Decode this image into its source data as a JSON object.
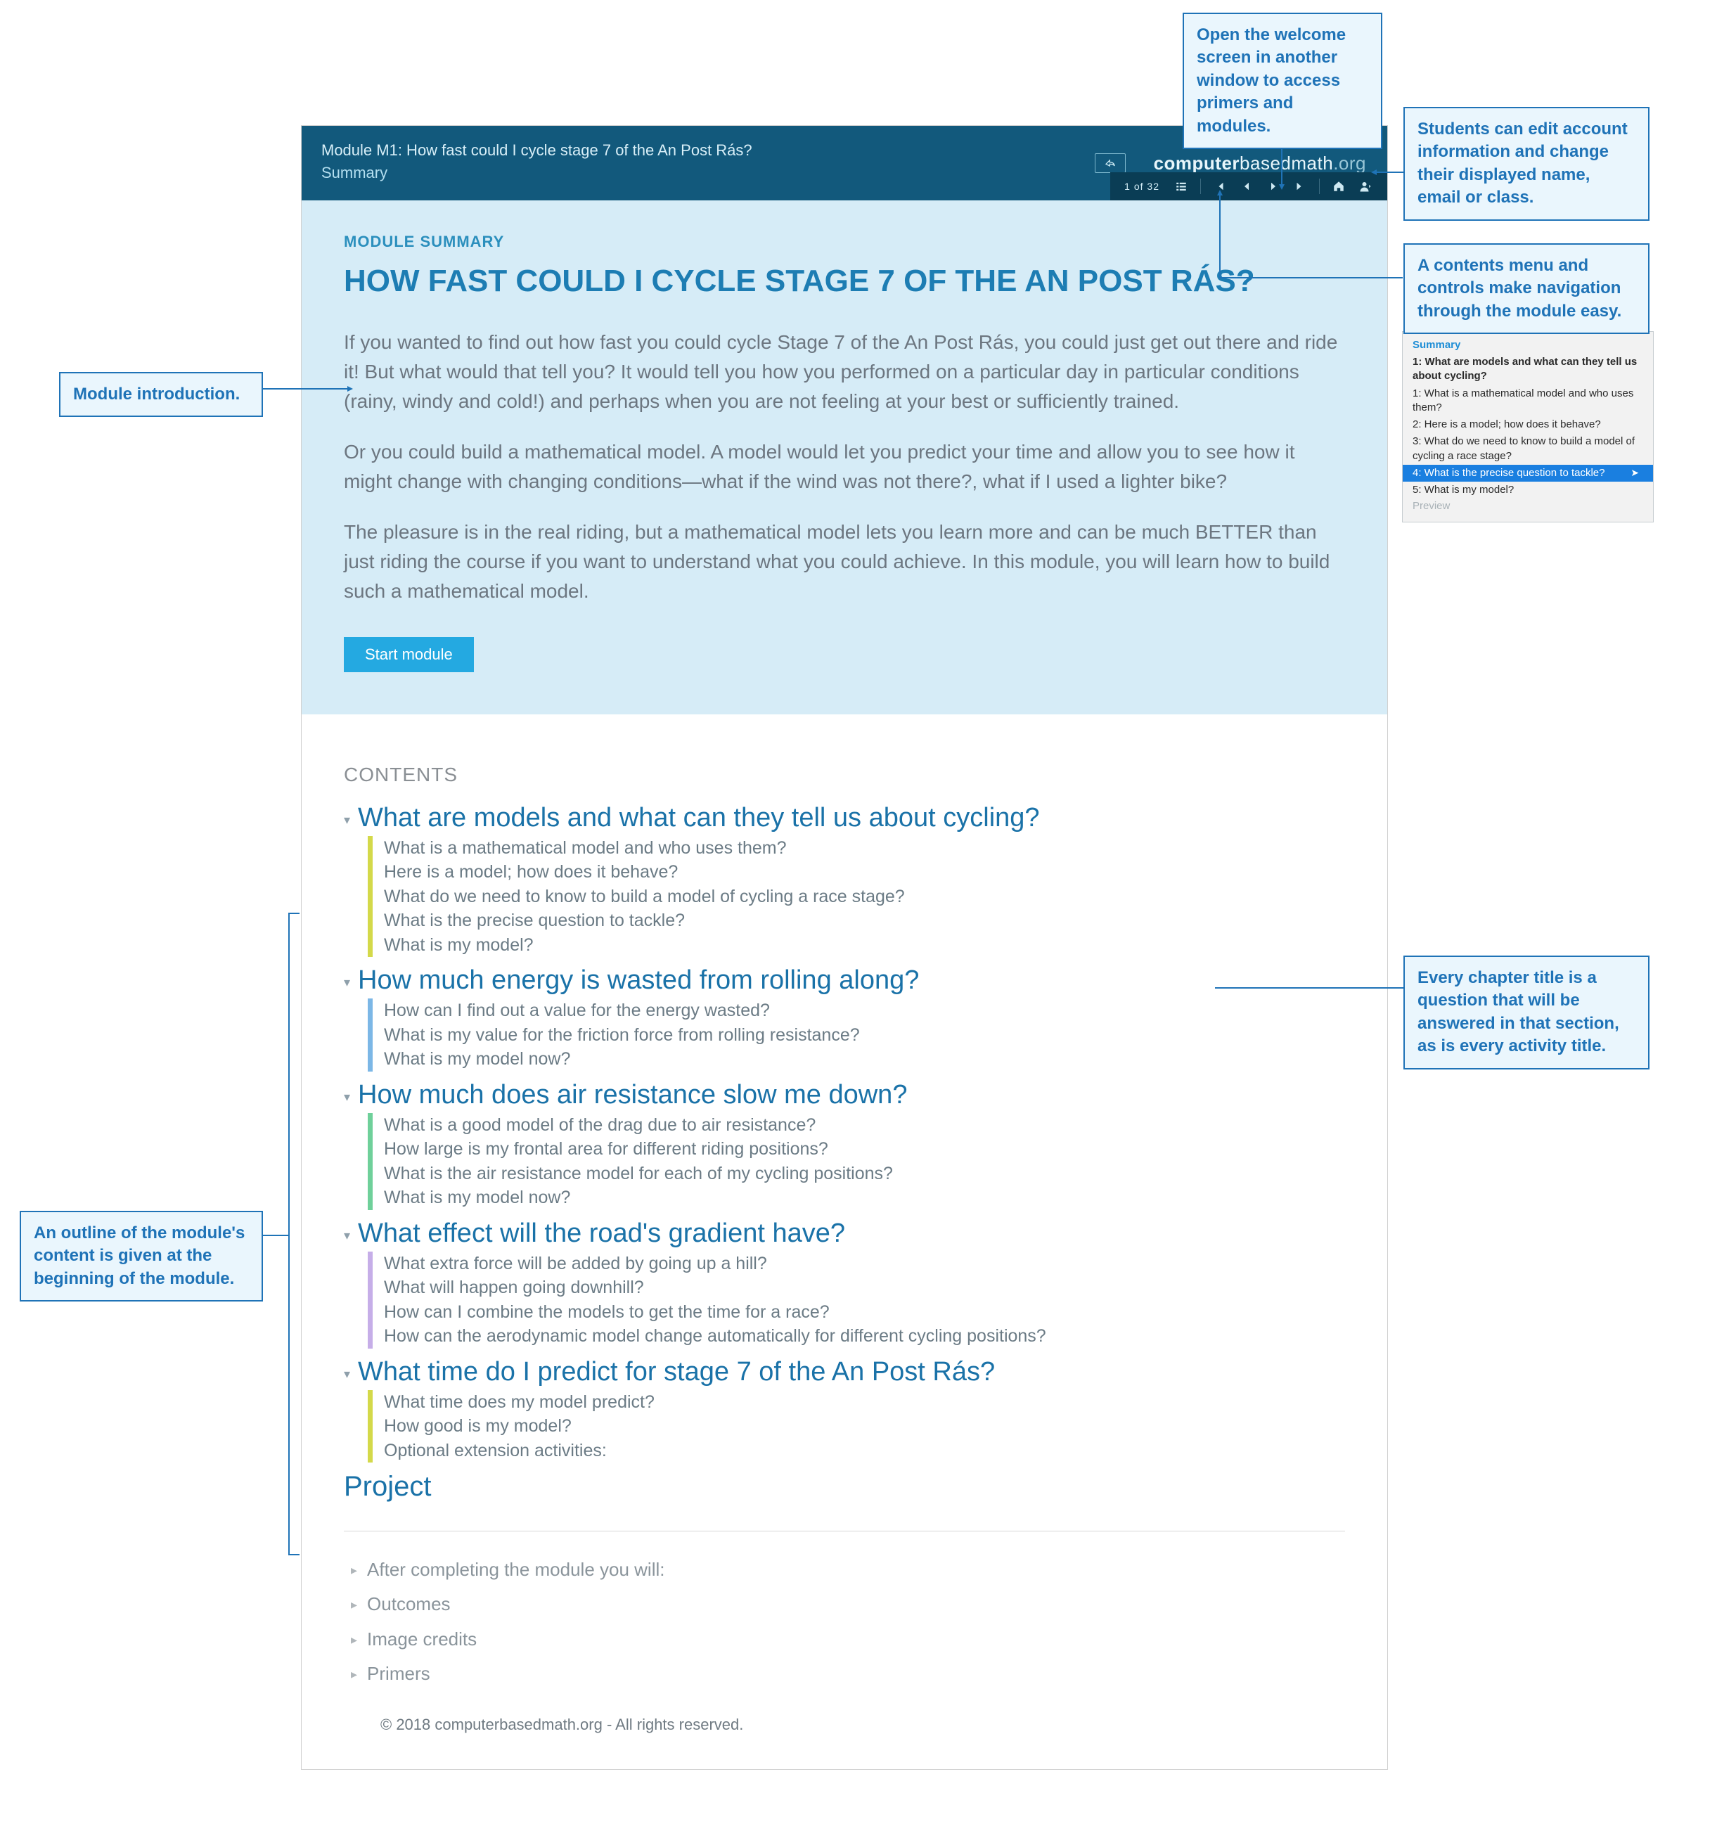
{
  "callouts": {
    "welcome": "Open the welcome screen in another window to access primers and modules.",
    "account": "Students can edit account information and change their displayed name, email or class.",
    "nav": "A contents menu and controls make navigation through the module easy.",
    "intro": "Module introduction.",
    "outline": "An outline of the module's content is given at the beginning of the module.",
    "chapter": "Every chapter title is a question that will be answered in that section, as is every activity title."
  },
  "header": {
    "title": "Module M1: How fast could I cycle stage 7 of the An Post Rás?",
    "subtitle": "Summary",
    "brand_bold": "computer",
    "brand_mid": "basedmath",
    "brand_light": ".org",
    "page_indicator": "1 of 32"
  },
  "summary": {
    "eyebrow": "MODULE SUMMARY",
    "title": "HOW FAST COULD I CYCLE STAGE 7 OF THE AN POST RÁS?",
    "p1": "If you wanted to find out how fast you could cycle Stage 7 of the An Post Rás, you could just get out there and ride it! But what would that tell you? It would tell you how you performed on a particular day in particular conditions (rainy, windy and cold!) and perhaps when you are not feeling at your best or sufficiently trained.",
    "p2": "Or you could build a mathematical model. A model would let you predict your time and allow you to see how it might change with changing conditions—what if the wind was not there?, what if I used a lighter bike?",
    "p3": "The pleasure is in the real riding, but a mathematical model lets you learn more and can be much BETTER than just riding the course if you want to understand what you could achieve. In this module, you will learn how to build such a mathematical model.",
    "start_label": "Start module"
  },
  "contents_heading": "CONTENTS",
  "chapters": [
    {
      "title": "What are models and what can they tell us about cycling?",
      "color": "#d4d94a",
      "items": [
        "What is a mathematical model and who uses them?",
        "Here is a model; how does it behave?",
        "What do we need to know to build a model of cycling a race stage?",
        "What is the precise question to tackle?",
        "What is my model?"
      ]
    },
    {
      "title": "How much energy is wasted from rolling along?",
      "color": "#7cb7e6",
      "items": [
        "How can I find out a value for the energy wasted?",
        "What is my value for the friction force from rolling resistance?",
        "What is my model now?"
      ]
    },
    {
      "title": "How much does air resistance slow me down?",
      "color": "#6fd09a",
      "items": [
        "What is a good model of the drag due to air resistance?",
        "How large is my frontal area for different riding positions?",
        "What is the air resistance model for each of my cycling positions?",
        "What is my model now?"
      ]
    },
    {
      "title": "What effect will the road's gradient have?",
      "color": "#c6aee8",
      "items": [
        "What extra force will be added by going up a hill?",
        "What will happen going downhill?",
        "How can I combine the models to get the time for a race?",
        "How can the aerodynamic model change automatically for different cycling positions?"
      ]
    },
    {
      "title": "What time do I predict for stage 7 of the An Post Rás?",
      "color": "#d4d94a",
      "items": [
        "What time does my model predict?",
        "How good is my model?",
        "Optional extension activities:"
      ]
    }
  ],
  "project_label": "Project",
  "meta": [
    "After completing the module you will:",
    "Outcomes",
    "Image credits",
    "Primers"
  ],
  "footer": "© 2018 computerbasedmath.org - All rights reserved.",
  "inset": {
    "summary": "Summary",
    "heading": "1: What are models and what can they tell us about cycling?",
    "i1": "1: What is a mathematical model and who uses them?",
    "i2": "2: Here is a model; how does it behave?",
    "i3": "3: What do we need to know to build a model of cycling a race stage?",
    "i4": "4: What is the precise question to tackle?",
    "i5": "5: What is my model?",
    "preview": "Preview"
  },
  "style": {
    "accent": "#1f73b7",
    "header_bg": "#12597c",
    "navbar_bg": "#0a3d55",
    "summary_bg": "#d6ecf7",
    "title_color": "#1d7db3",
    "body_color": "#6c7680",
    "chapter_color": "#1a72a8",
    "start_btn_bg": "#24a9e1"
  }
}
